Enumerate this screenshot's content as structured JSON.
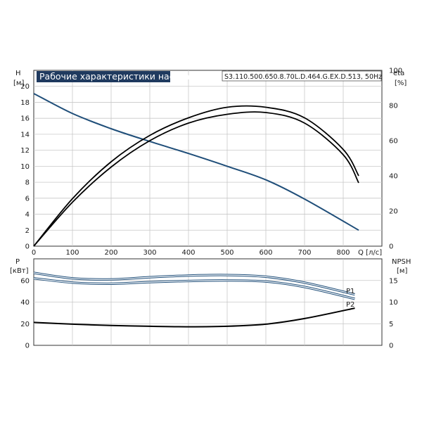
{
  "chart_data": [
    {
      "type": "line",
      "title": "Рабочие характеристики насоса",
      "model": "S3.110.500.650.8.70L.D.464.G.EX.D.513, 50Hz",
      "x_axis": {
        "label": "Q [л/с]",
        "ticks": [
          0,
          100,
          200,
          300,
          400,
          500,
          600,
          700,
          800
        ],
        "range": [
          0,
          900
        ]
      },
      "y_left": {
        "label": "H",
        "unit": "[м]",
        "ticks": [
          0,
          2,
          4,
          6,
          8,
          10,
          12,
          14,
          16,
          18,
          20
        ],
        "range": [
          0,
          22
        ]
      },
      "y_right": {
        "label": "eta",
        "unit": "[%]",
        "ticks": [
          0,
          20,
          40,
          60,
          80,
          100
        ],
        "range": [
          0,
          100
        ]
      },
      "grid": true,
      "series": [
        {
          "id": "head",
          "axis": "left",
          "color": "#1f4e79",
          "x": [
            0,
            100,
            200,
            300,
            400,
            500,
            600,
            700,
            840
          ],
          "values": [
            19.1,
            16.6,
            14.7,
            13.1,
            11.6,
            10.0,
            8.3,
            5.9,
            2.0
          ]
        },
        {
          "id": "eta-1",
          "axis": "right",
          "color": "#000000",
          "x": [
            0,
            100,
            200,
            300,
            400,
            500,
            600,
            700,
            800,
            840
          ],
          "values": [
            0,
            27,
            48,
            63,
            73,
            79,
            79,
            73,
            55,
            40
          ]
        },
        {
          "id": "eta-2",
          "axis": "right",
          "color": "#000000",
          "x": [
            0,
            100,
            200,
            300,
            400,
            500,
            600,
            700,
            800,
            840
          ],
          "values": [
            0,
            25,
            45,
            60,
            70,
            75,
            76,
            70,
            52,
            36
          ]
        }
      ]
    },
    {
      "type": "line",
      "x_axis": {
        "ticks": [
          0,
          100,
          200,
          300,
          400,
          500,
          600,
          700,
          800
        ],
        "range": [
          0,
          900
        ]
      },
      "y_left": {
        "label": "P",
        "unit": "[кВт]",
        "ticks": [
          0,
          20,
          40,
          60
        ],
        "range": [
          0,
          80
        ]
      },
      "y_right": {
        "label": "NPSH",
        "unit": "[м]",
        "ticks": [
          0,
          5,
          10,
          15
        ],
        "range": [
          0,
          20
        ]
      },
      "grid": true,
      "series": [
        {
          "id": "p1",
          "name": "P1",
          "axis": "left",
          "color": "#1f4e79",
          "x": [
            0,
            100,
            200,
            300,
            400,
            500,
            600,
            700,
            830
          ],
          "values": [
            67,
            62,
            61,
            63,
            64.5,
            65,
            63.5,
            58,
            47
          ]
        },
        {
          "id": "p2",
          "name": "P2",
          "axis": "left",
          "color": "#1f4e79",
          "x": [
            0,
            100,
            200,
            300,
            400,
            500,
            600,
            700,
            830
          ],
          "values": [
            62,
            58,
            57,
            58.5,
            59.5,
            60,
            59,
            54,
            43
          ]
        },
        {
          "id": "npsh",
          "axis": "right",
          "color": "#000000",
          "x": [
            0,
            100,
            200,
            300,
            400,
            500,
            600,
            700,
            830
          ],
          "values": [
            5.3,
            4.9,
            4.6,
            4.4,
            4.3,
            4.4,
            4.9,
            6.2,
            8.6
          ]
        }
      ]
    }
  ]
}
